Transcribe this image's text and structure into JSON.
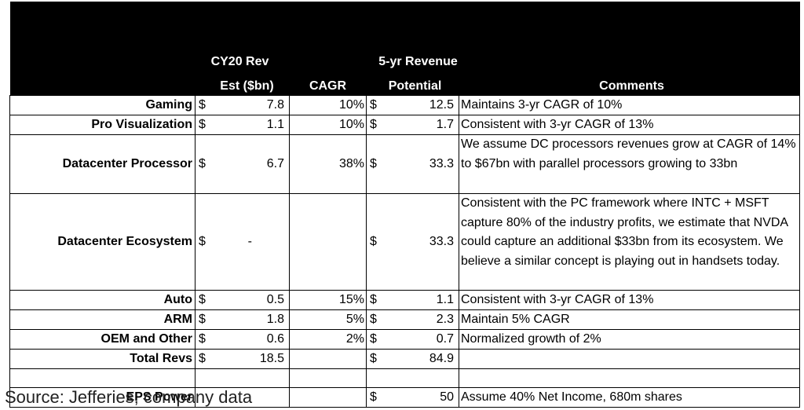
{
  "headers": {
    "col2_line1": "CY20  Rev",
    "col2_line2": "Est ($bn)",
    "col3": "CAGR",
    "col4_line1": "5-yr Revenue",
    "col4_line2": "Potential",
    "col5": "Comments"
  },
  "rows": [
    {
      "label": "Gaming",
      "cur1": "$",
      "rev": "7.8",
      "cagr": "10%",
      "cur2": "$",
      "potential": "12.5",
      "comment": "Maintains 3-yr CAGR of 10%"
    },
    {
      "label": "Pro Visualization",
      "cur1": "$",
      "rev": "1.1",
      "cagr": "10%",
      "cur2": "$",
      "potential": "1.7",
      "comment": "Consistent with 3-yr CAGR of 13%"
    },
    {
      "label": "Datacenter Processor",
      "cur1": "$",
      "rev": "6.7",
      "cagr": "38%",
      "cur2": "$",
      "potential": "33.3",
      "comment": "We assume DC processors revenues grow at CAGR of 14% to $67bn with parallel processors growing to 33bn"
    },
    {
      "label": "Datacenter Ecosystem",
      "cur1": "$",
      "rev": "-",
      "cagr": "",
      "cur2": "$",
      "potential": "33.3",
      "comment": "Consistent with the PC framework where INTC + MSFT capture 80% of the industry profits, we estimate that NVDA could capture an additional $33bn from its ecosystem.  We believe a similar concept is playing out in handsets today."
    },
    {
      "label": "Auto",
      "cur1": "$",
      "rev": "0.5",
      "cagr": "15%",
      "cur2": "$",
      "potential": "1.1",
      "comment": "Consistent with 3-yr CAGR of 13%"
    },
    {
      "label": "ARM",
      "cur1": "$",
      "rev": "1.8",
      "cagr": "5%",
      "cur2": "$",
      "potential": "2.3",
      "comment": "Maintain 5% CAGR"
    },
    {
      "label": "OEM and Other",
      "cur1": "$",
      "rev": "0.6",
      "cagr": "2%",
      "cur2": "$",
      "potential": "0.7",
      "comment": "Normalized growth of 2%"
    },
    {
      "label": "Total Revs",
      "cur1": "$",
      "rev": "18.5",
      "cagr": "",
      "cur2": "$",
      "potential": "84.9",
      "comment": ""
    }
  ],
  "eps": {
    "label": "EPS Power",
    "cur2": "$",
    "value": "50",
    "comment": "Assume 40% Net Income, 680m shares"
  },
  "source": "Source: Jefferies, company data"
}
